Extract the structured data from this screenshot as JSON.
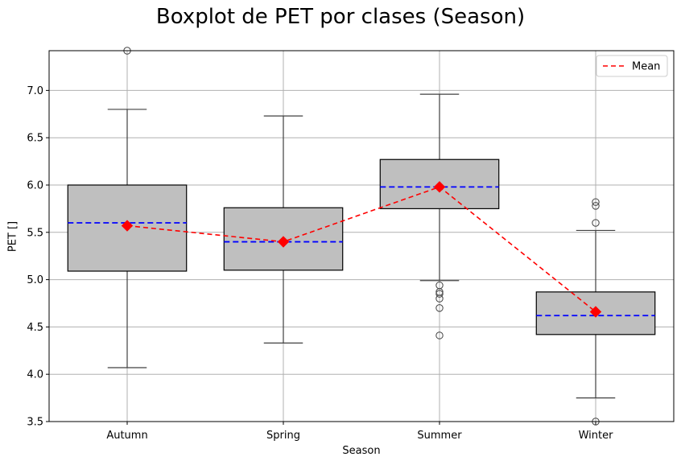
{
  "chart_data": {
    "type": "box",
    "title": "Boxplot de PET por clases (Season)",
    "xlabel": "Season",
    "ylabel": "PET []",
    "ylim": [
      3.5,
      7.42
    ],
    "yticks": [
      3.5,
      4.0,
      4.5,
      5.0,
      5.5,
      6.0,
      6.5,
      7.0
    ],
    "ytick_labels": [
      "3.5",
      "4.0",
      "4.5",
      "5.0",
      "5.5",
      "6.0",
      "6.5",
      "7.0"
    ],
    "grid": true,
    "legend": {
      "position": "top-right",
      "entries": [
        "Mean"
      ]
    },
    "colors": {
      "box_fill": "#bfbfbf",
      "median": "#0000ff",
      "mean": "#ff0000",
      "whisker": "#404040",
      "grid": "#b0b0b0"
    },
    "categories": [
      "Autumn",
      "Spring",
      "Summer",
      "Winter"
    ],
    "boxes": [
      {
        "category": "Autumn",
        "whisker_low": 4.07,
        "q1": 5.09,
        "median": 5.6,
        "q3": 6.0,
        "whisker_high": 6.8,
        "mean": 5.57,
        "outliers": [
          7.42
        ]
      },
      {
        "category": "Spring",
        "whisker_low": 4.33,
        "q1": 5.1,
        "median": 5.4,
        "q3": 5.76,
        "whisker_high": 6.73,
        "mean": 5.4,
        "outliers": []
      },
      {
        "category": "Summer",
        "whisker_low": 4.99,
        "q1": 5.75,
        "median": 5.98,
        "q3": 6.27,
        "whisker_high": 6.96,
        "mean": 5.98,
        "outliers": [
          4.94,
          4.87,
          4.85,
          4.8,
          4.7,
          4.41
        ]
      },
      {
        "category": "Winter",
        "whisker_low": 3.75,
        "q1": 4.42,
        "median": 4.62,
        "q3": 4.87,
        "whisker_high": 5.52,
        "mean": 4.66,
        "outliers": [
          5.82,
          5.78,
          5.6,
          3.5
        ]
      }
    ]
  }
}
